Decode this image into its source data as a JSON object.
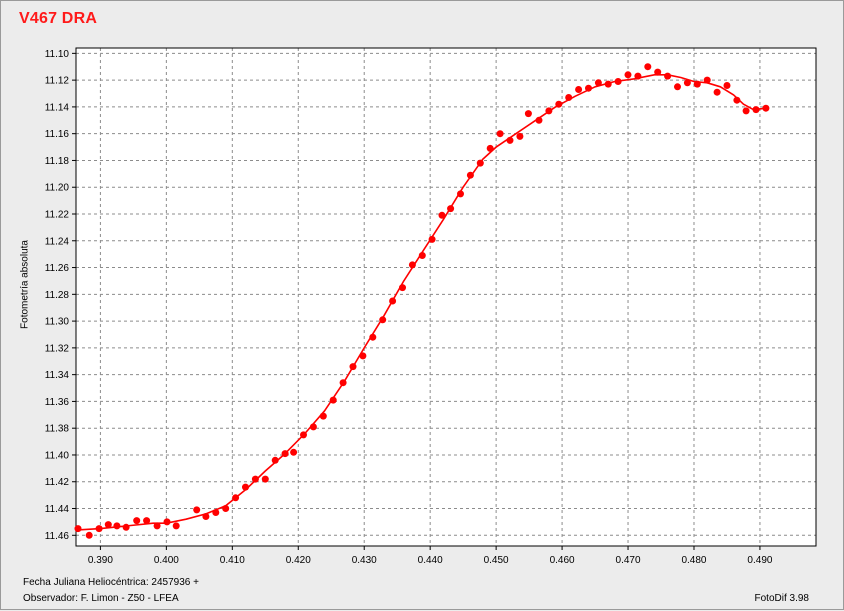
{
  "chart_data": {
    "type": "scatter",
    "title": "V467 DRA",
    "ylabel": "Fotometría absoluta",
    "xlabel": "Fecha Juliana Heliocéntrica: 2457936 +",
    "x_ticks": [
      "0.390",
      "0.400",
      "0.410",
      "0.420",
      "0.430",
      "0.440",
      "0.450",
      "0.460",
      "0.470",
      "0.480",
      "0.490"
    ],
    "y_ticks": [
      "11.10",
      "11.12",
      "11.14",
      "11.16",
      "11.18",
      "11.20",
      "11.22",
      "11.24",
      "11.26",
      "11.28",
      "11.30",
      "11.32",
      "11.34",
      "11.36",
      "11.38",
      "11.40",
      "11.42",
      "11.44",
      "11.46"
    ],
    "xlim": [
      0.3863,
      0.4985
    ],
    "ylim": [
      11.468,
      11.096
    ],
    "y_inverted": true,
    "grid": true,
    "colors": {
      "series": "#ff0000",
      "title": "#ff1a1a"
    },
    "points": [
      [
        0.3866,
        11.455
      ],
      [
        0.3883,
        11.46
      ],
      [
        0.3898,
        11.455
      ],
      [
        0.3912,
        11.452
      ],
      [
        0.3925,
        11.453
      ],
      [
        0.3939,
        11.454
      ],
      [
        0.3955,
        11.449
      ],
      [
        0.397,
        11.449
      ],
      [
        0.3986,
        11.453
      ],
      [
        0.4001,
        11.45
      ],
      [
        0.4015,
        11.453
      ],
      [
        0.4046,
        11.441
      ],
      [
        0.406,
        11.446
      ],
      [
        0.4075,
        11.443
      ],
      [
        0.409,
        11.44
      ],
      [
        0.4105,
        11.432
      ],
      [
        0.412,
        11.424
      ],
      [
        0.4135,
        11.418
      ],
      [
        0.415,
        11.418
      ],
      [
        0.4165,
        11.404
      ],
      [
        0.418,
        11.399
      ],
      [
        0.4193,
        11.398
      ],
      [
        0.4208,
        11.385
      ],
      [
        0.4223,
        11.379
      ],
      [
        0.4238,
        11.371
      ],
      [
        0.4253,
        11.359
      ],
      [
        0.4268,
        11.346
      ],
      [
        0.4283,
        11.334
      ],
      [
        0.4298,
        11.326
      ],
      [
        0.4313,
        11.312
      ],
      [
        0.4328,
        11.299
      ],
      [
        0.4343,
        11.285
      ],
      [
        0.4358,
        11.275
      ],
      [
        0.4373,
        11.258
      ],
      [
        0.4388,
        11.251
      ],
      [
        0.4403,
        11.239
      ],
      [
        0.4418,
        11.221
      ],
      [
        0.4431,
        11.216
      ],
      [
        0.4446,
        11.205
      ],
      [
        0.4461,
        11.191
      ],
      [
        0.4476,
        11.182
      ],
      [
        0.4491,
        11.171
      ],
      [
        0.4506,
        11.16
      ],
      [
        0.4521,
        11.165
      ],
      [
        0.4536,
        11.162
      ],
      [
        0.4549,
        11.145
      ],
      [
        0.4565,
        11.15
      ],
      [
        0.458,
        11.143
      ],
      [
        0.4595,
        11.138
      ],
      [
        0.461,
        11.133
      ],
      [
        0.4625,
        11.127
      ],
      [
        0.464,
        11.126
      ],
      [
        0.4655,
        11.122
      ],
      [
        0.467,
        11.123
      ],
      [
        0.4685,
        11.121
      ],
      [
        0.47,
        11.116
      ],
      [
        0.4715,
        11.117
      ],
      [
        0.473,
        11.11
      ],
      [
        0.4745,
        11.114
      ],
      [
        0.476,
        11.117
      ],
      [
        0.4775,
        11.125
      ],
      [
        0.479,
        11.122
      ],
      [
        0.4805,
        11.123
      ],
      [
        0.482,
        11.12
      ],
      [
        0.4835,
        11.129
      ],
      [
        0.485,
        11.124
      ],
      [
        0.4865,
        11.135
      ],
      [
        0.4879,
        11.143
      ],
      [
        0.4894,
        11.142
      ],
      [
        0.4909,
        11.141
      ]
    ],
    "fit": [
      [
        0.3866,
        11.456
      ],
      [
        0.39,
        11.455
      ],
      [
        0.394,
        11.453
      ],
      [
        0.398,
        11.451
      ],
      [
        0.4,
        11.451
      ],
      [
        0.403,
        11.448
      ],
      [
        0.406,
        11.444
      ],
      [
        0.409,
        11.438
      ],
      [
        0.412,
        11.426
      ],
      [
        0.415,
        11.412
      ],
      [
        0.418,
        11.399
      ],
      [
        0.421,
        11.384
      ],
      [
        0.424,
        11.367
      ],
      [
        0.427,
        11.345
      ],
      [
        0.43,
        11.32
      ],
      [
        0.433,
        11.296
      ],
      [
        0.436,
        11.27
      ],
      [
        0.439,
        11.247
      ],
      [
        0.442,
        11.224
      ],
      [
        0.445,
        11.2
      ],
      [
        0.448,
        11.179
      ],
      [
        0.45,
        11.17
      ],
      [
        0.453,
        11.16
      ],
      [
        0.456,
        11.15
      ],
      [
        0.459,
        11.14
      ],
      [
        0.462,
        11.132
      ],
      [
        0.465,
        11.125
      ],
      [
        0.468,
        11.121
      ],
      [
        0.471,
        11.119
      ],
      [
        0.474,
        11.116
      ],
      [
        0.476,
        11.116
      ],
      [
        0.478,
        11.118
      ],
      [
        0.48,
        11.121
      ],
      [
        0.482,
        11.122
      ],
      [
        0.484,
        11.125
      ],
      [
        0.486,
        11.131
      ],
      [
        0.4875,
        11.138
      ],
      [
        0.489,
        11.142
      ],
      [
        0.491,
        11.141
      ]
    ]
  },
  "footer": {
    "line1": "Fecha Juliana Heliocéntrica: 2457936 +",
    "line2": "Observador: F. Limon - Z50 - LFEA",
    "software": "FotoDif 3.98"
  }
}
